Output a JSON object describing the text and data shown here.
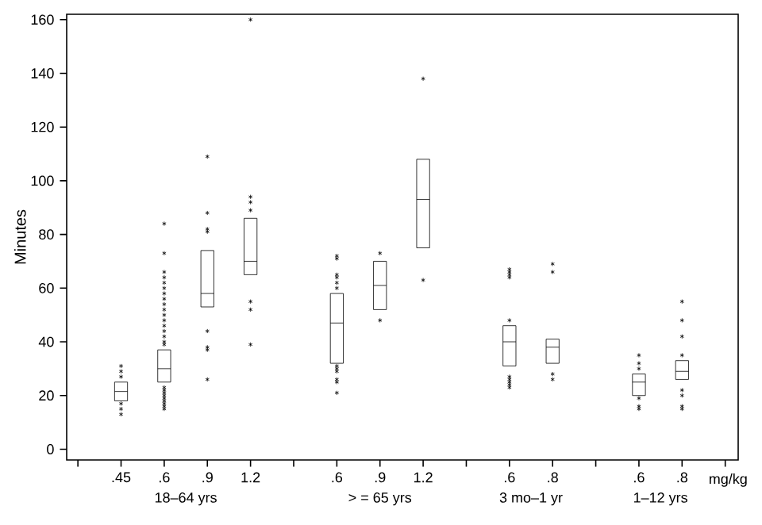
{
  "chart_data": {
    "type": "box",
    "ylabel": "Minutes",
    "xlabel": "mg/kg",
    "color": "#000000",
    "marker": "star",
    "categories": [
      null,
      ".45",
      ".6",
      ".9",
      "1.2",
      null,
      ".6",
      ".9",
      "1.2",
      null,
      ".6",
      ".8",
      null,
      ".6",
      ".8",
      null
    ],
    "boxes": [
      null,
      {
        "low": 18,
        "q1": 18,
        "median": 21.5,
        "q3": 25,
        "high": 25,
        "outliers": [
          13,
          15,
          17,
          27,
          29,
          31
        ]
      },
      {
        "low": 25,
        "q1": 25,
        "median": 30,
        "q3": 37,
        "high": 37,
        "outliers": [
          15,
          16,
          17,
          18,
          19,
          20,
          21,
          22,
          23,
          39,
          40,
          42,
          44,
          46,
          48,
          50,
          52,
          54,
          56,
          58,
          60,
          62,
          64,
          66,
          73,
          84
        ]
      },
      {
        "low": 53,
        "q1": 53,
        "median": 58,
        "q3": 74,
        "high": 74,
        "outliers": [
          26,
          37,
          38,
          44,
          81,
          82,
          88,
          109
        ]
      },
      {
        "low": 65,
        "q1": 65,
        "median": 70,
        "q3": 86,
        "high": 86,
        "outliers": [
          39,
          52,
          55,
          89,
          92,
          94,
          160
        ]
      },
      null,
      {
        "low": 32,
        "q1": 32,
        "median": 47,
        "q3": 58,
        "high": 58,
        "outliers": [
          21,
          25,
          26,
          29,
          30,
          31,
          60,
          62,
          64,
          65,
          71,
          72
        ]
      },
      {
        "low": 52,
        "q1": 52,
        "median": 61,
        "q3": 70,
        "high": 70,
        "outliers": [
          48,
          73
        ]
      },
      {
        "low": 75,
        "q1": 75,
        "median": 93,
        "q3": 108,
        "high": 108,
        "outliers": [
          63,
          138
        ]
      },
      null,
      {
        "low": 31,
        "q1": 31,
        "median": 40,
        "q3": 46,
        "high": 46,
        "outliers": [
          23,
          24,
          25,
          26,
          27,
          48,
          64,
          65,
          66,
          67
        ]
      },
      {
        "low": 32,
        "q1": 32,
        "median": 38,
        "q3": 41,
        "high": 41,
        "outliers": [
          26,
          28,
          66,
          69
        ]
      },
      null,
      {
        "low": 20,
        "q1": 20,
        "median": 25,
        "q3": 28,
        "high": 28,
        "outliers": [
          15,
          16,
          19,
          30,
          32,
          35
        ]
      },
      {
        "low": 26,
        "q1": 26,
        "median": 29,
        "q3": 33,
        "high": 33,
        "outliers": [
          15,
          16,
          20,
          22,
          35,
          42,
          48,
          55
        ]
      },
      null
    ],
    "ylim": [
      -4,
      162
    ],
    "yticks": [
      0,
      20,
      40,
      60,
      80,
      100,
      120,
      140,
      160
    ],
    "annotations": [
      "18–64 yrs",
      "> = 65 yrs",
      "3 mo–1 yr",
      "1–12 yrs"
    ]
  }
}
